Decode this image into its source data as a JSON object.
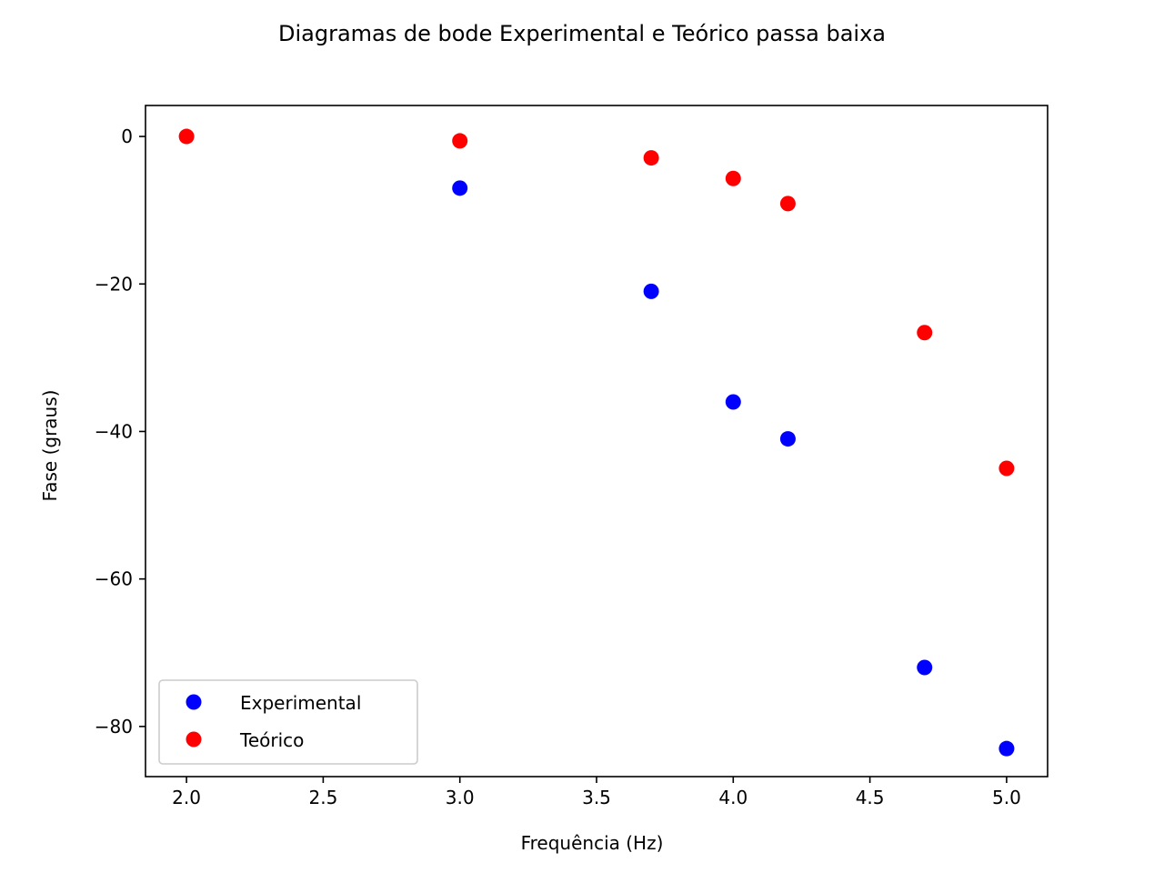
{
  "chart_data": {
    "type": "scatter",
    "title": "Diagramas de bode Experimental e Teórico passa baixa",
    "xlabel": "Frequência (Hz)",
    "ylabel": "Fase (graus)",
    "xlim": [
      1.85,
      5.15
    ],
    "ylim": [
      -86.8,
      4.2
    ],
    "xticks": [
      2.0,
      2.5,
      3.0,
      3.5,
      4.0,
      4.5,
      5.0
    ],
    "xtick_labels": [
      "2.0",
      "2.5",
      "3.0",
      "3.5",
      "4.0",
      "4.5",
      "5.0"
    ],
    "yticks": [
      0,
      -20,
      -40,
      -60,
      -80
    ],
    "ytick_labels": [
      "0",
      "−20",
      "−40",
      "−60",
      "−80"
    ],
    "grid": false,
    "legend_position": "lower-left",
    "series": [
      {
        "name": "Experimental",
        "color": "#0000ff",
        "x": [
          3.0,
          3.7,
          4.0,
          4.2,
          4.7,
          5.0
        ],
        "y": [
          -7.0,
          -21.0,
          -36.0,
          -41.0,
          -72.0,
          -83.0
        ]
      },
      {
        "name": "Teórico",
        "color": "#ff0000",
        "x": [
          2.0,
          3.0,
          3.7,
          4.0,
          4.2,
          4.7,
          5.0
        ],
        "y": [
          0.0,
          -0.6,
          -2.9,
          -5.7,
          -9.1,
          -26.6,
          -45.0
        ]
      }
    ]
  }
}
